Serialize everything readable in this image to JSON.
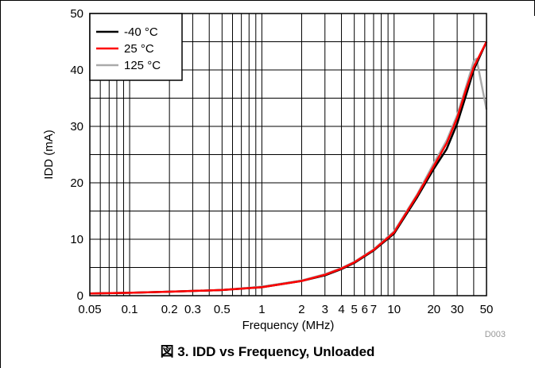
{
  "caption": "図 3. IDD vs Frequency, Unloaded",
  "figure_code": "D003",
  "colors": {
    "s1": "#000000",
    "s2": "#ff0000",
    "s3": "#aaaaaa",
    "grid": "#000000"
  },
  "chart_data": {
    "type": "line",
    "title": "",
    "xlabel": "Frequency (MHz)",
    "ylabel": "IDD (mA)",
    "xscale": "log",
    "xlim": [
      0.05,
      50
    ],
    "ylim": [
      0,
      50
    ],
    "grid": true,
    "legend_position": "top-left",
    "x_ticks": [
      {
        "v": 0.05,
        "t": "0.05"
      },
      {
        "v": 0.1,
        "t": "0.1"
      },
      {
        "v": 0.2,
        "t": "0.2"
      },
      {
        "v": 0.3,
        "t": "0.3"
      },
      {
        "v": 0.5,
        "t": "0.5"
      },
      {
        "v": 1,
        "t": "1"
      },
      {
        "v": 2,
        "t": "2"
      },
      {
        "v": 3,
        "t": "3"
      },
      {
        "v": 4,
        "t": "4"
      },
      {
        "v": 5,
        "t": "5"
      },
      {
        "v": 6,
        "t": "6"
      },
      {
        "v": 7,
        "t": "7"
      },
      {
        "v": 10,
        "t": "10"
      },
      {
        "v": 20,
        "t": "20"
      },
      {
        "v": 30,
        "t": "30"
      },
      {
        "v": 50,
        "t": "50"
      }
    ],
    "y_ticks": [
      {
        "v": 0,
        "t": "0"
      },
      {
        "v": 10,
        "t": "10"
      },
      {
        "v": 20,
        "t": "20"
      },
      {
        "v": 30,
        "t": "30"
      },
      {
        "v": 40,
        "t": "40"
      },
      {
        "v": 50,
        "t": "50"
      }
    ],
    "series": [
      {
        "name": "-40 °C",
        "x": [
          0.05,
          0.1,
          0.2,
          0.5,
          1,
          2,
          3,
          4,
          5,
          7,
          10,
          15,
          20,
          25,
          30,
          35,
          40,
          50
        ],
        "y": [
          0.4,
          0.5,
          0.7,
          1.0,
          1.5,
          2.6,
          3.6,
          4.7,
          5.8,
          8.0,
          11.0,
          17.5,
          22.5,
          26.0,
          30.5,
          35.5,
          40.0,
          45.0
        ]
      },
      {
        "name": "25 °C",
        "x": [
          0.05,
          0.1,
          0.2,
          0.5,
          1,
          2,
          3,
          4,
          5,
          7,
          10,
          15,
          20,
          25,
          30,
          35,
          40,
          50
        ],
        "y": [
          0.4,
          0.5,
          0.7,
          1.0,
          1.5,
          2.6,
          3.7,
          4.8,
          5.9,
          8.1,
          11.2,
          17.8,
          23.0,
          27.0,
          31.5,
          36.5,
          40.5,
          45.0
        ]
      },
      {
        "name": "125 °C",
        "x": [
          0.05,
          0.1,
          0.2,
          0.5,
          1,
          2,
          3,
          4,
          5,
          7,
          10,
          15,
          20,
          25,
          30,
          35,
          40,
          42,
          50
        ],
        "y": [
          0.4,
          0.5,
          0.7,
          1.0,
          1.6,
          2.7,
          3.8,
          4.9,
          6.0,
          8.2,
          11.4,
          18.0,
          23.5,
          27.5,
          32.0,
          37.0,
          41.5,
          42.0,
          33.0
        ]
      }
    ]
  }
}
